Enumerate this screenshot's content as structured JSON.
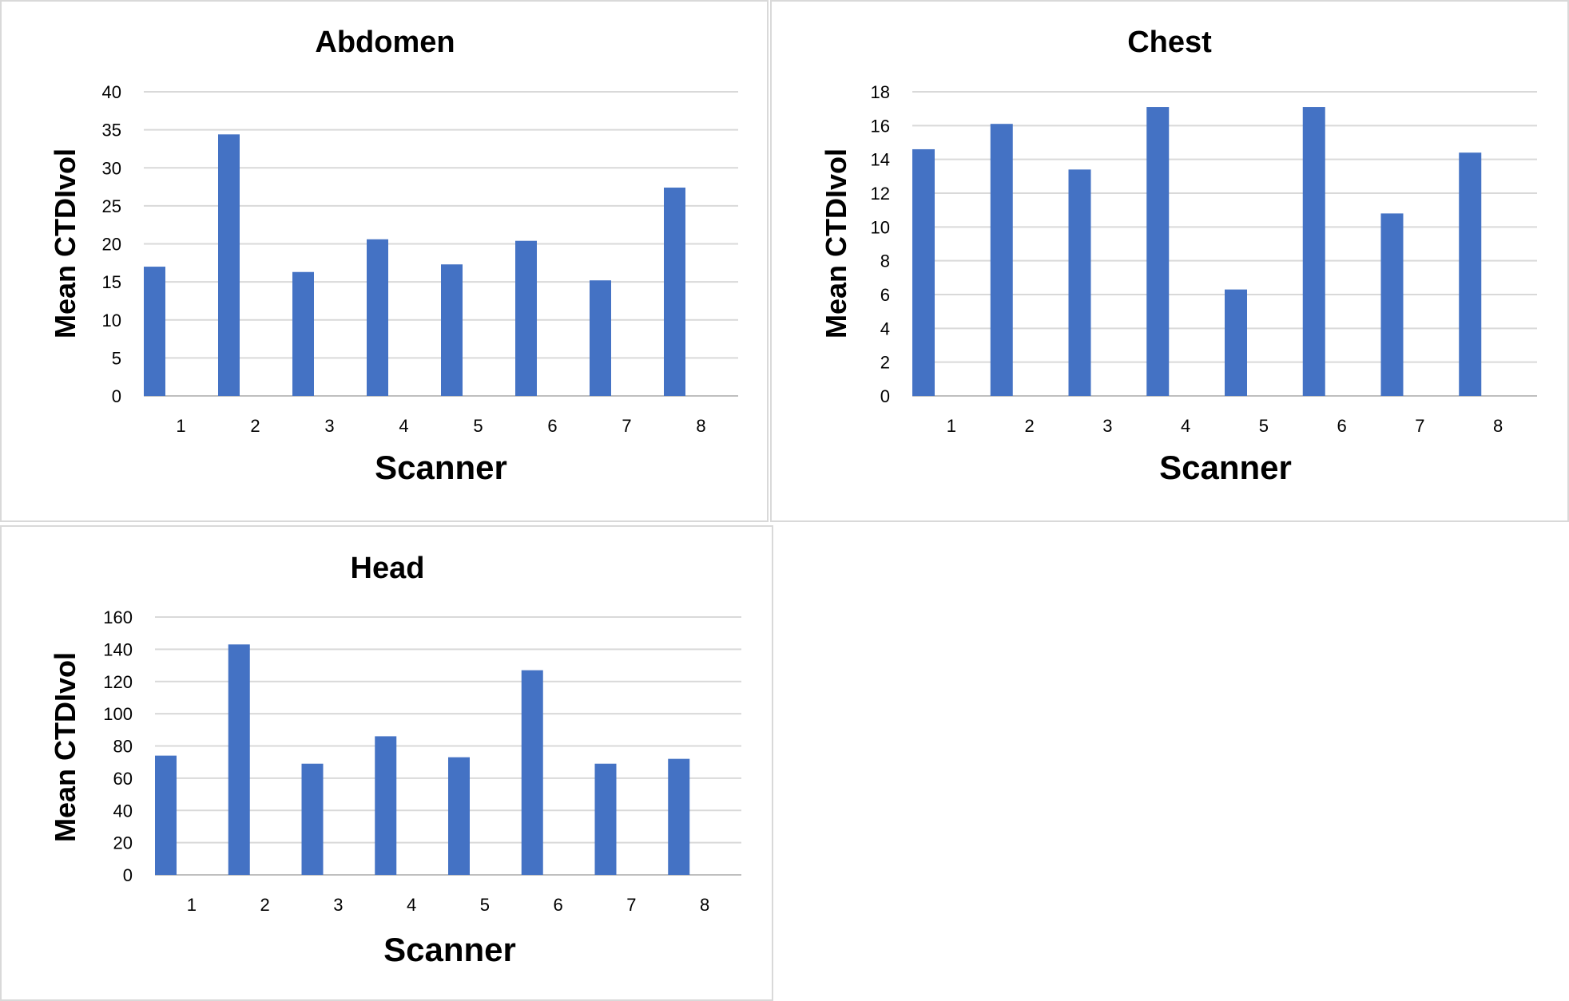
{
  "chart_data": [
    {
      "type": "bar",
      "title": "Abdomen",
      "xlabel": "Scanner",
      "ylabel": "Mean CTDIvol",
      "categories": [
        "1",
        "2",
        "3",
        "4",
        "5",
        "6",
        "7",
        "8"
      ],
      "values": [
        17,
        34.4,
        16.3,
        20.6,
        17.3,
        20.4,
        15.2,
        27.4
      ],
      "ylim": [
        0,
        40
      ],
      "yticks": [
        0,
        5,
        10,
        15,
        20,
        25,
        30,
        35,
        40
      ],
      "grid": true,
      "color": "#4472C4"
    },
    {
      "type": "bar",
      "title": "Chest",
      "xlabel": "Scanner",
      "ylabel": "Mean CTDIvol",
      "categories": [
        "1",
        "2",
        "3",
        "4",
        "5",
        "6",
        "7",
        "8"
      ],
      "values": [
        14.6,
        16.1,
        13.4,
        17.1,
        6.3,
        17.1,
        10.8,
        14.4
      ],
      "ylim": [
        0,
        18
      ],
      "yticks": [
        0,
        2,
        4,
        6,
        8,
        10,
        12,
        14,
        16,
        18
      ],
      "grid": true,
      "color": "#4472C4"
    },
    {
      "type": "bar",
      "title": "Head",
      "xlabel": "Scanner",
      "ylabel": "Mean CTDIvol",
      "categories": [
        "1",
        "2",
        "3",
        "4",
        "5",
        "6",
        "7",
        "8"
      ],
      "values": [
        74,
        143,
        69,
        86,
        73,
        127,
        69,
        72
      ],
      "ylim": [
        0,
        160
      ],
      "yticks": [
        0,
        20,
        40,
        60,
        80,
        100,
        120,
        140,
        160
      ],
      "grid": true,
      "color": "#4472C4"
    }
  ]
}
